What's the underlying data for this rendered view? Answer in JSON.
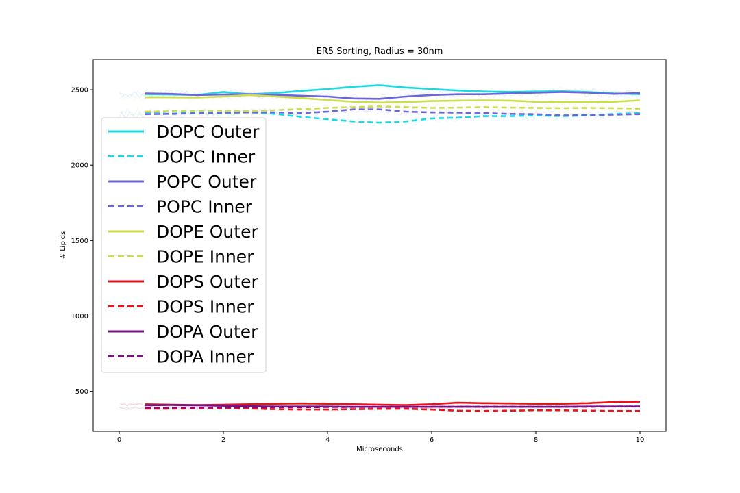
{
  "chart_data": {
    "type": "line",
    "title": "ER5 Sorting, Radius = 30nm",
    "xlabel": "Microseconds",
    "ylabel": "# Lipids",
    "xlim": [
      -0.5,
      10.5
    ],
    "ylim": [
      235,
      2700
    ],
    "xticks": [
      0,
      2,
      4,
      6,
      8,
      10
    ],
    "yticks": [
      500,
      1000,
      1500,
      2000,
      2500
    ],
    "grid": false,
    "legend_position": "center-left",
    "x": [
      0.5,
      1.0,
      1.5,
      2.0,
      2.5,
      3.0,
      3.5,
      4.0,
      4.5,
      5.0,
      5.5,
      6.0,
      6.5,
      7.0,
      7.5,
      8.0,
      8.5,
      9.0,
      9.5,
      10.0
    ],
    "series": [
      {
        "name": "DOPC Outer",
        "color": "#1ed8e0",
        "dashed": false,
        "values": [
          2470,
          2468,
          2465,
          2485,
          2470,
          2478,
          2492,
          2505,
          2520,
          2530,
          2515,
          2505,
          2495,
          2488,
          2485,
          2488,
          2490,
          2485,
          2475,
          2470
        ]
      },
      {
        "name": "DOPC Inner",
        "color": "#1ed8e0",
        "dashed": true,
        "values": [
          2350,
          2355,
          2352,
          2345,
          2350,
          2340,
          2320,
          2305,
          2290,
          2282,
          2290,
          2310,
          2315,
          2325,
          2325,
          2330,
          2325,
          2330,
          2340,
          2345
        ]
      },
      {
        "name": "POPC Outer",
        "color": "#6b67d8",
        "dashed": false,
        "values": [
          2475,
          2472,
          2465,
          2468,
          2470,
          2466,
          2460,
          2455,
          2442,
          2440,
          2455,
          2465,
          2470,
          2470,
          2475,
          2480,
          2485,
          2480,
          2472,
          2478
        ]
      },
      {
        "name": "POPC Inner",
        "color": "#6b67d8",
        "dashed": true,
        "values": [
          2338,
          2340,
          2345,
          2348,
          2350,
          2350,
          2345,
          2355,
          2370,
          2370,
          2355,
          2350,
          2348,
          2345,
          2340,
          2338,
          2330,
          2332,
          2335,
          2338
        ]
      },
      {
        "name": "DOPE Outer",
        "color": "#cddd4e",
        "dashed": false,
        "values": [
          2450,
          2450,
          2448,
          2455,
          2465,
          2455,
          2445,
          2432,
          2420,
          2415,
          2418,
          2425,
          2428,
          2430,
          2428,
          2420,
          2418,
          2418,
          2420,
          2430
        ]
      },
      {
        "name": "DOPE Inner",
        "color": "#cddd4e",
        "dashed": true,
        "values": [
          2355,
          2358,
          2360,
          2362,
          2358,
          2365,
          2372,
          2380,
          2385,
          2390,
          2385,
          2380,
          2382,
          2385,
          2382,
          2380,
          2378,
          2380,
          2378,
          2375
        ]
      },
      {
        "name": "DOPS Outer",
        "color": "#e8141b",
        "dashed": false,
        "values": [
          415,
          412,
          410,
          412,
          415,
          418,
          420,
          418,
          415,
          412,
          410,
          415,
          425,
          422,
          420,
          418,
          418,
          422,
          430,
          432
        ]
      },
      {
        "name": "DOPS Inner",
        "color": "#e8141b",
        "dashed": true,
        "values": [
          385,
          385,
          387,
          388,
          386,
          382,
          380,
          380,
          382,
          384,
          385,
          380,
          372,
          370,
          372,
          375,
          375,
          372,
          370,
          370
        ]
      },
      {
        "name": "DOPA Outer",
        "color": "#7b0f85",
        "dashed": false,
        "values": [
          408,
          410,
          408,
          405,
          402,
          400,
          400,
          400,
          398,
          398,
          398,
          398,
          398,
          398,
          398,
          398,
          398,
          400,
          400,
          400
        ]
      },
      {
        "name": "DOPA Inner",
        "color": "#7b0f85",
        "dashed": true,
        "values": [
          392,
          392,
          392,
          394,
          395,
          395,
          395,
          396,
          396,
          396,
          396,
          398,
          398,
          398,
          398,
          398,
          398,
          398,
          400,
          400
        ]
      }
    ],
    "raw_noise_band": {
      "upper_group": {
        "x_range": [
          0,
          10
        ],
        "approx_range": [
          2260,
          2540
        ]
      },
      "lower_group": {
        "x_range": [
          0,
          10
        ],
        "approx_range": [
          365,
          430
        ]
      }
    }
  }
}
